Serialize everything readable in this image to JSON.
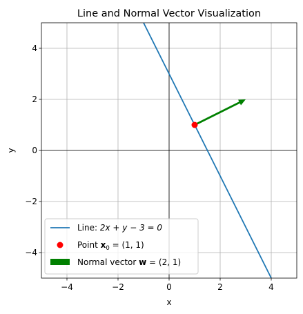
{
  "chart_data": {
    "type": "line",
    "title": "Line and Normal Vector Visualization",
    "xlabel": "x",
    "ylabel": "y",
    "xlim": [
      -5,
      5
    ],
    "ylim": [
      -5,
      5
    ],
    "xticks": [
      -4,
      -2,
      0,
      2,
      4
    ],
    "yticks": [
      -4,
      -2,
      0,
      2,
      4
    ],
    "xtick_labels": [
      "−4",
      "−2",
      "0",
      "2",
      "4"
    ],
    "ytick_labels": [
      "−4",
      "−2",
      "0",
      "2",
      "4"
    ],
    "grid": true,
    "legend_position": "lower-left",
    "line": {
      "name_prefix": "Line: ",
      "name_math": "2x + y − 3 = 0",
      "x": [
        -5,
        5
      ],
      "y": [
        13,
        -7
      ],
      "color": "#1f77b4"
    },
    "point": {
      "name_prefix": "Point ",
      "name_math": "x",
      "name_sub": "0",
      "name_suffix": " = (1, 1)",
      "x": 1,
      "y": 1,
      "color": "#ff0000"
    },
    "vector": {
      "name_prefix": "Normal vector ",
      "name_math": "w",
      "name_suffix": " = (2, 1)",
      "origin": [
        1,
        1
      ],
      "components": [
        2,
        1
      ],
      "color": "#008000"
    },
    "origin_axes_color": "#000000"
  }
}
